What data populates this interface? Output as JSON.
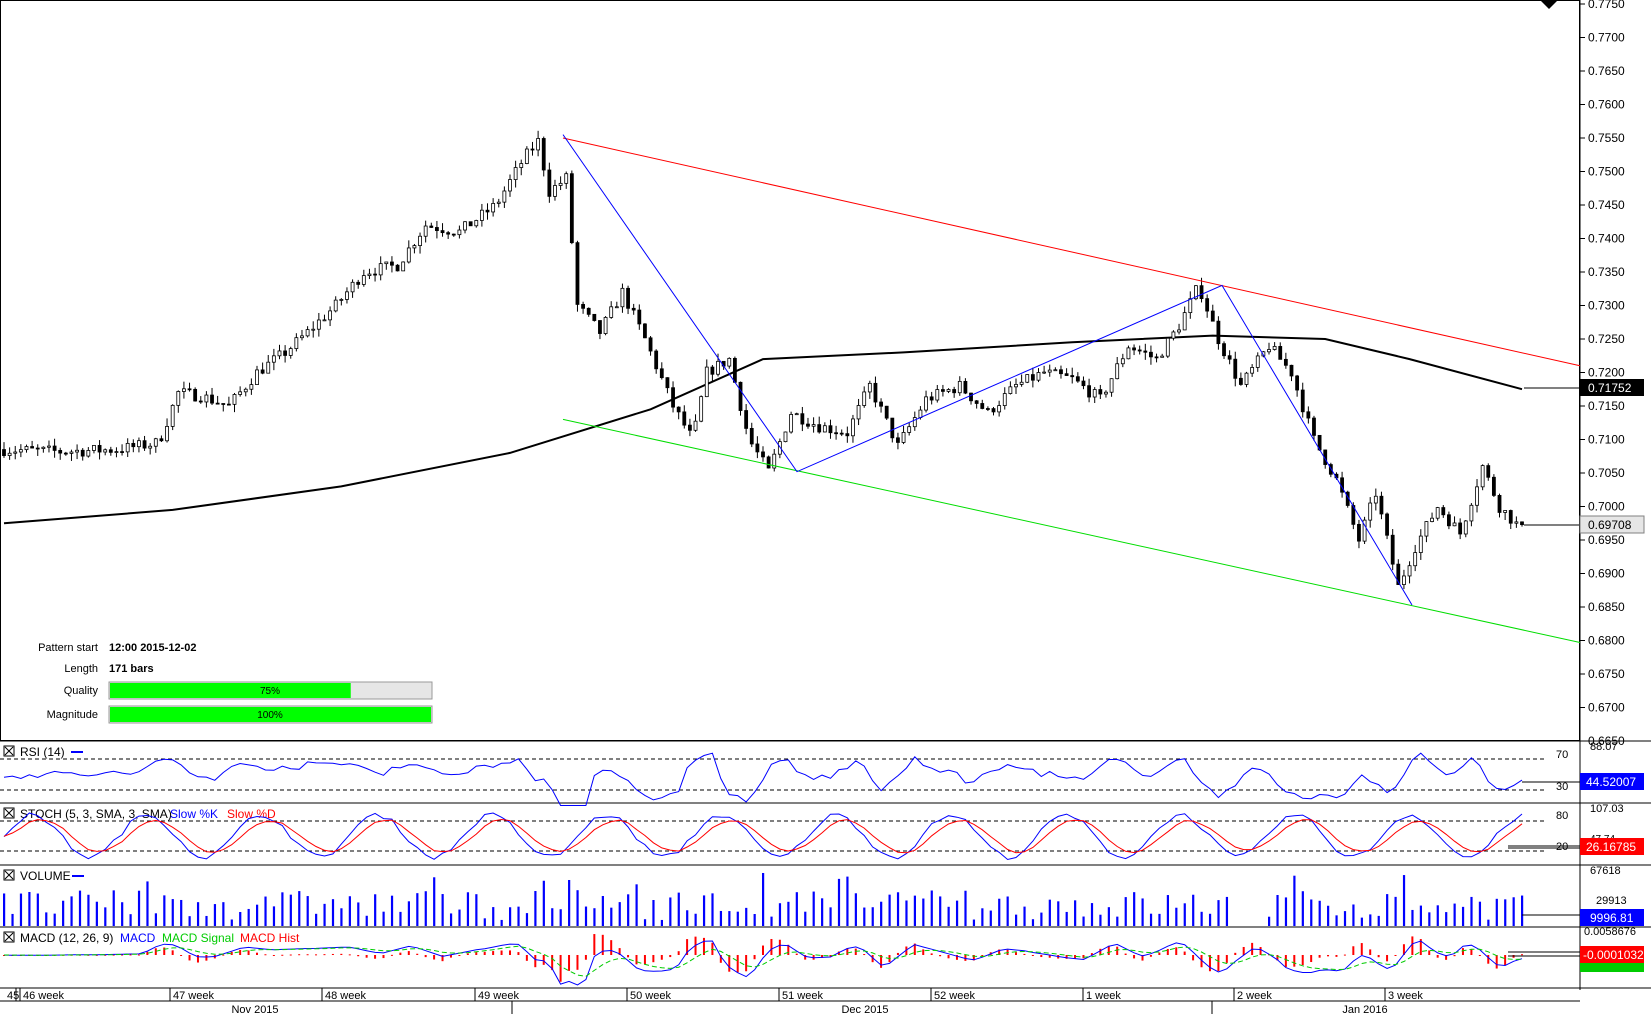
{
  "chart_data": {
    "type": "candlestick",
    "price_axis": {
      "ylim": [
        0.665,
        0.775
      ],
      "ticks": [
        "0.7750",
        "0.7700",
        "0.7650",
        "0.7600",
        "0.7550",
        "0.7500",
        "0.7450",
        "0.7400",
        "0.7350",
        "0.7300",
        "0.7250",
        "0.7200",
        "0.7150",
        "0.7100",
        "0.7050",
        "0.7000",
        "0.6950",
        "0.6900",
        "0.6850",
        "0.6800",
        "0.6750",
        "0.6700",
        "0.6650"
      ],
      "ma_label": "0.71752",
      "last_price_label": "0.69708"
    },
    "time_axis": {
      "weeks": [
        "45",
        "46 week",
        "47 week",
        "48 week",
        "49 week",
        "50 week",
        "51 week",
        "52 week",
        "1 week",
        "2 week",
        "3 week"
      ],
      "months": [
        "Nov 2015",
        "Dec 2015",
        "Jan 2016"
      ]
    },
    "pattern": {
      "start_label": "Pattern start",
      "start_value": "12:00 2015-12-02",
      "length_label": "Length",
      "length_value": "171 bars",
      "quality_label": "Quality",
      "quality_value": "75%",
      "quality_fraction": 0.75,
      "magnitude_label": "Magnitude",
      "magnitude_value": "100%",
      "magnitude_fraction": 1.0
    },
    "zigzag": [
      0.7555,
      0.7052,
      0.733,
      0.6853
    ],
    "channel": {
      "upper_start": 0.755,
      "upper_end": 0.721,
      "lower_start": 0.713,
      "lower_end": 0.6797
    },
    "indicators": {
      "rsi": {
        "label": "RSI (14)",
        "levels": [
          "70",
          "30"
        ],
        "top": "88.07",
        "value": "44.52007"
      },
      "stoch": {
        "label": "STOCH (5, 3, SMA, 3, SMA)",
        "slow_k": "Slow %K",
        "slow_d": "Slow %D",
        "levels": [
          "80",
          "20"
        ],
        "top": "107.03",
        "value": "26.16785",
        "mid": "47.74"
      },
      "volume": {
        "label": "VOLUME",
        "top": "67618",
        "mid": "29913",
        "value": "9996.81"
      },
      "macd": {
        "label": "MACD (12, 26, 9)",
        "macd": "MACD",
        "signal": "MACD Signal",
        "hist": "MACD Hist",
        "top": "0.0058676",
        "value": "-0.0001032"
      }
    },
    "colors": {
      "up": "#ffffff",
      "down": "#000000",
      "channel_upper": "#ff0000",
      "channel_lower": "#00dd00",
      "zigzag": "#0000ff",
      "ma": "#000000",
      "bar_fill": "#00ff00",
      "indicator_line": "#0000ff",
      "signal": "#00cc00",
      "hist": "#ff0000",
      "value_box": "#0000ff",
      "macd_box": "#ff0000"
    }
  }
}
